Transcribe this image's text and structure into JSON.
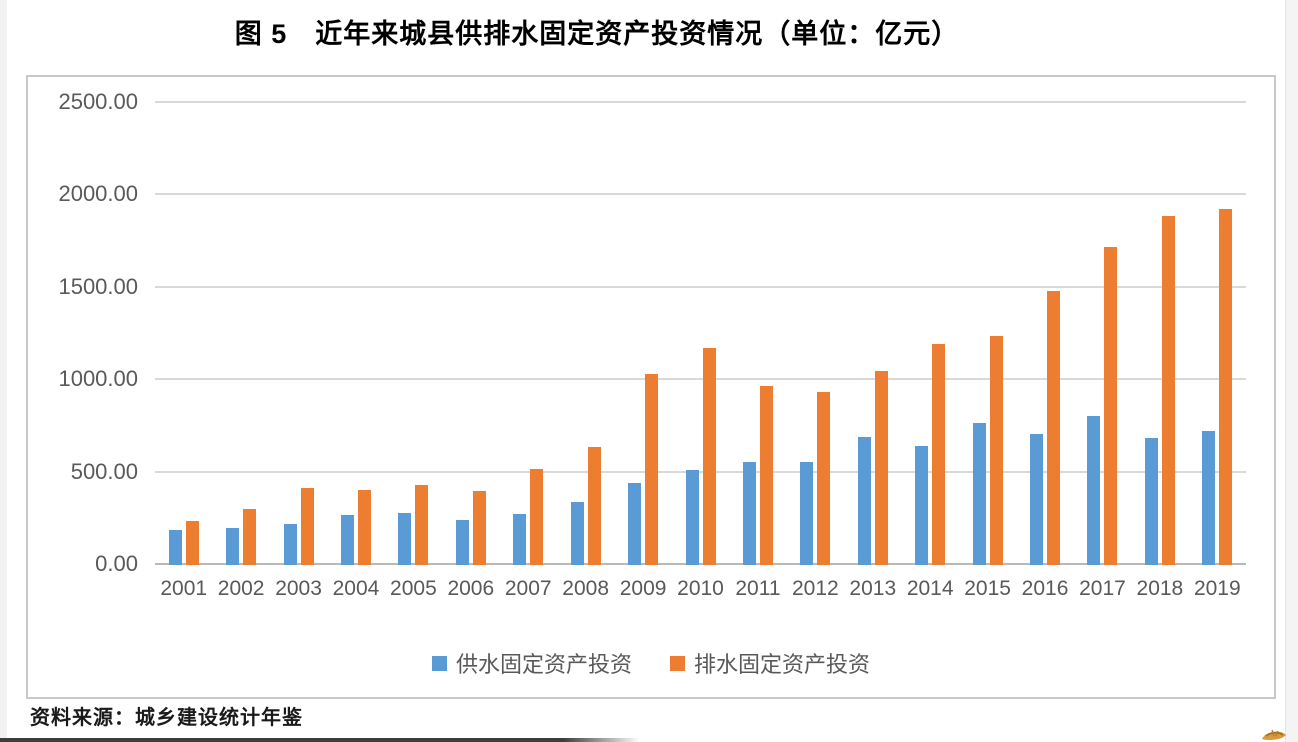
{
  "title": "图 5　近年来城县供排水固定资产投资情况（单位：亿元）",
  "source": "资料来源：城乡建设统计年鉴",
  "colors": {
    "supply_blue": "#5B9BD5",
    "drainage_orange": "#ED7D31",
    "gridline": "#d9d9d9",
    "axis_line": "#b9b9b9",
    "tick_text": "#595959"
  },
  "chart_data": {
    "type": "bar",
    "title": "图 5　近年来城县供排水固定资产投资情况（单位：亿元）",
    "unit": "亿元",
    "categories": [
      "2001",
      "2002",
      "2003",
      "2004",
      "2005",
      "2006",
      "2007",
      "2008",
      "2009",
      "2010",
      "2011",
      "2012",
      "2013",
      "2014",
      "2015",
      "2016",
      "2017",
      "2018",
      "2019"
    ],
    "series": [
      {
        "name": "供水固定资产投资",
        "color": "#5B9BD5",
        "values": [
          190,
          198,
          220,
          270,
          280,
          245,
          277,
          340,
          445,
          515,
          560,
          555,
          690,
          645,
          770,
          710,
          805,
          685,
          725
        ]
      },
      {
        "name": "排水固定资产投资",
        "color": "#ED7D31",
        "values": [
          240,
          305,
          418,
          405,
          432,
          400,
          518,
          640,
          1035,
          1175,
          970,
          935,
          1050,
          1195,
          1240,
          1480,
          1720,
          1890,
          1925
        ]
      }
    ],
    "ylim": [
      0,
      2500
    ],
    "ytick_interval": 500,
    "ytick_labels": [
      "0.00",
      "500.00",
      "1000.00",
      "1500.00",
      "2000.00",
      "2500.00"
    ],
    "xlabel": "",
    "ylabel": "",
    "grid": "horizontal",
    "legend_position": "bottom"
  }
}
